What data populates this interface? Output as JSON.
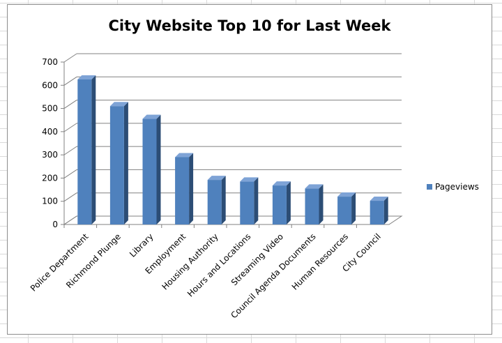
{
  "chart_data": {
    "type": "bar",
    "title": "City Website Top 10 for Last Week",
    "xlabel": "",
    "ylabel": "",
    "categories": [
      "Police Department",
      "Richmond Plunge",
      "Library",
      "Employment",
      "Housing Authority",
      "Hours and Locations",
      "Streaming Video",
      "Council Agenda Documents",
      "Human Resources",
      "City Council"
    ],
    "series": [
      {
        "name": "Pageviews",
        "color": "#4f81bd",
        "values": [
          625,
          510,
          455,
          290,
          192,
          185,
          168,
          155,
          120,
          102
        ]
      }
    ],
    "ylim": [
      0,
      700
    ],
    "yticks": [
      0,
      100,
      200,
      300,
      400,
      500,
      600,
      700
    ],
    "grid": true,
    "legend_position": "right",
    "style": "3d-clustered-column"
  }
}
